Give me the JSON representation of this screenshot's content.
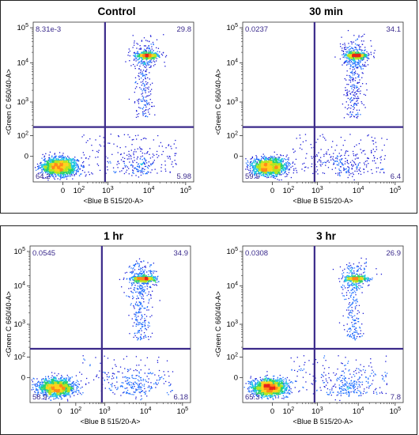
{
  "chart_data": [
    {
      "type": "scatter",
      "title": "Control",
      "xlabel": "<Blue B 515/20-A>",
      "ylabel": "<Green C 660/40-A>",
      "scale": "biexponential",
      "x_ticks": [
        "0",
        "10^2",
        "10^3",
        "10^4",
        "10^5"
      ],
      "y_ticks": [
        "0",
        "10^2",
        "10^3",
        "10^4",
        "10^5"
      ],
      "gate": {
        "x": 800,
        "y": 180
      },
      "quadrants": {
        "upper_left": "8.31e-3",
        "upper_right": "29.8",
        "lower_left": "64.2",
        "lower_right": "5.98"
      }
    },
    {
      "type": "scatter",
      "title": "30 min",
      "xlabel": "<Blue B 515/20-A>",
      "ylabel": "<Green C 660/40-A>",
      "scale": "biexponential",
      "x_ticks": [
        "0",
        "10^2",
        "10^3",
        "10^4",
        "10^5"
      ],
      "y_ticks": [
        "0",
        "10^2",
        "10^3",
        "10^4",
        "10^5"
      ],
      "gate": {
        "x": 800,
        "y": 180
      },
      "quadrants": {
        "upper_left": "0.0237",
        "upper_right": "34.1",
        "lower_left": "59.5",
        "lower_right": "6.4"
      }
    },
    {
      "type": "scatter",
      "title": "1 hr",
      "xlabel": "<Blue B 515/20-A>",
      "ylabel": "<Green C 660/40-A>",
      "scale": "biexponential",
      "x_ticks": [
        "0",
        "10^2",
        "10^3",
        "10^4",
        "10^5"
      ],
      "y_ticks": [
        "0",
        "10^2",
        "10^3",
        "10^4",
        "10^5"
      ],
      "gate": {
        "x": 800,
        "y": 180
      },
      "quadrants": {
        "upper_left": "0.0545",
        "upper_right": "34.9",
        "lower_left": "58.9",
        "lower_right": "6.18"
      }
    },
    {
      "type": "scatter",
      "title": "3 hr",
      "xlabel": "<Blue B 515/20-A>",
      "ylabel": "<Green C 660/40-A>",
      "scale": "biexponential",
      "x_ticks": [
        "0",
        "10^2",
        "10^3",
        "10^4",
        "10^5"
      ],
      "y_ticks": [
        "0",
        "10^2",
        "10^3",
        "10^4",
        "10^5"
      ],
      "gate": {
        "x": 800,
        "y": 180
      },
      "quadrants": {
        "upper_left": "0.0308",
        "upper_right": "26.9",
        "lower_left": "65.3",
        "lower_right": "7.8"
      }
    }
  ],
  "colors": {
    "gate_line": "#3b2a8a",
    "quadrant_text": "#3a2a8c",
    "density_scale": [
      "#1a1ad6",
      "#1f6fff",
      "#17c3e0",
      "#2bd16a",
      "#b6e51f",
      "#ffd21f",
      "#ff8a1a",
      "#e8241a"
    ]
  }
}
